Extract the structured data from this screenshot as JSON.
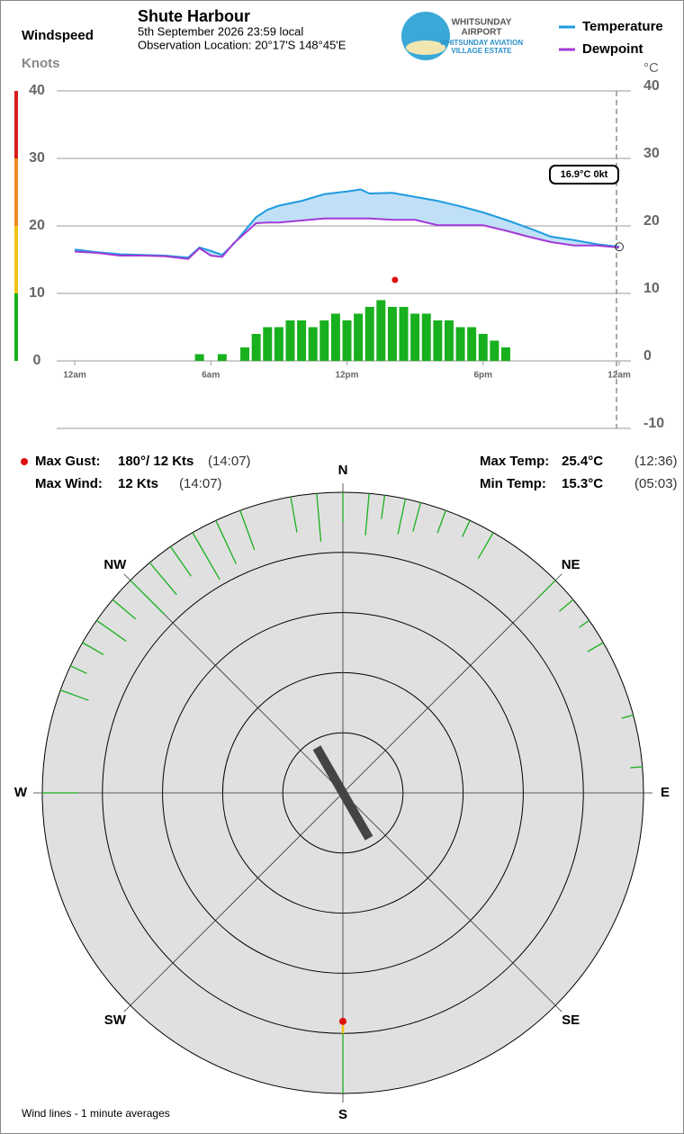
{
  "header": {
    "title": "Shute Harbour",
    "date": "5th September 2026  23:59 local",
    "location": "Observation Location:  20°17'S 148°45'E",
    "logo_line1": "WHITSUNDAY",
    "logo_line2": "AIRPORT",
    "logo_line3": "WHITSUNDAY AVIATION",
    "logo_line4": "VILLAGE ESTATE"
  },
  "stats": {
    "max_gust_label": "Max Gust:",
    "max_gust": "180°/  12 Kts",
    "max_gust_time": "(14:07)",
    "max_wind_label": "Max Wind:",
    "max_wind": "12 Kts",
    "max_wind_time": "(14:07)",
    "max_temp_label": "Max Temp:",
    "max_temp": "25.4°C",
    "max_temp_time": "(12:36)",
    "min_temp_label": "Min Temp:",
    "min_temp": "15.3°C",
    "min_temp_time": "(05:03)"
  },
  "footer": "Wind lines - 1 minute averages",
  "chart_data": [
    {
      "type": "line",
      "ylabel": "Windspeed",
      "yunit": "Knots",
      "y2unit": "°C",
      "xlim": [
        0,
        24
      ],
      "xticks": [
        {
          "value": 0,
          "label": "12am"
        },
        {
          "value": 6,
          "label": "6am"
        },
        {
          "value": 12,
          "label": "12pm"
        },
        {
          "value": 18,
          "label": "6pm"
        },
        {
          "value": 24,
          "label": "12am"
        }
      ],
      "ylim": [
        0,
        40
      ],
      "yticks": [
        0,
        10,
        20,
        30,
        40
      ],
      "y2lim": [
        -10,
        40
      ],
      "y2ticks": [
        -10,
        0,
        10,
        20,
        30,
        40
      ],
      "grid": true,
      "legend": "top-right",
      "x": [
        0,
        1,
        2,
        3,
        4,
        5,
        5.5,
        6,
        6.5,
        7,
        8,
        8.5,
        9,
        10,
        11,
        12,
        12.6,
        13,
        14,
        15,
        16,
        17,
        18,
        19,
        20,
        21,
        22,
        23,
        24
      ],
      "series": [
        {
          "name": "Temperature",
          "color": "#1e9be0",
          "axis": "y2",
          "values": [
            16.5,
            16.1,
            15.8,
            15.7,
            15.6,
            15.3,
            16.8,
            16.3,
            15.7,
            17.3,
            21.3,
            22.4,
            23.0,
            23.7,
            24.7,
            25.1,
            25.4,
            24.8,
            24.9,
            24.3,
            23.7,
            22.9,
            22.0,
            20.9,
            19.7,
            18.4,
            17.9,
            17.3,
            16.9
          ]
        },
        {
          "name": "Dewpoint",
          "color": "#a33ad6",
          "axis": "y2",
          "values": [
            16.2,
            16.0,
            15.6,
            15.6,
            15.5,
            15.1,
            16.7,
            15.6,
            15.4,
            17.4,
            20.4,
            20.5,
            20.5,
            20.8,
            21.1,
            21.1,
            21.1,
            21.1,
            20.9,
            20.9,
            20.1,
            20.1,
            20.1,
            19.3,
            18.4,
            17.6,
            17.1,
            17.1,
            16.8
          ]
        }
      ],
      "bars": {
        "color": "#19b01e",
        "x": [
          0,
          0.5,
          1,
          1.5,
          2,
          2.5,
          3,
          3.5,
          4,
          4.5,
          5,
          5.5,
          6,
          6.5,
          7,
          7.5,
          8,
          8.5,
          9,
          9.5,
          10,
          10.5,
          11,
          11.5,
          12,
          12.5,
          13,
          13.5,
          14,
          14.5,
          15,
          15.5,
          16,
          16.5,
          17,
          17.5,
          18,
          18.5,
          19,
          19.5,
          20,
          20.5,
          21,
          21.5,
          22,
          22.5,
          23,
          23.5
        ],
        "values": [
          0,
          0,
          0,
          0,
          0,
          0,
          0,
          0,
          0,
          0,
          0,
          1,
          0,
          1,
          0,
          2,
          4,
          5,
          5,
          6,
          6,
          5,
          6,
          7,
          6,
          7,
          8,
          9,
          8,
          8,
          7,
          7,
          6,
          6,
          5,
          5,
          4,
          3,
          2,
          0,
          0,
          0,
          0,
          0,
          0,
          0,
          0,
          0
        ]
      },
      "gust": {
        "x": 14.117,
        "value": 12,
        "color": "#e01010"
      },
      "current": {
        "x": 24,
        "value": 16.9,
        "label": "16.9°C  0kt"
      }
    },
    {
      "type": "polar",
      "rlim": [
        0,
        50
      ],
      "rticks": [
        10,
        20,
        30,
        40,
        50
      ],
      "thetaticks": [
        {
          "value": 0,
          "label": "N"
        },
        {
          "value": 45,
          "label": "NE"
        },
        {
          "value": 90,
          "label": "E"
        },
        {
          "value": 135,
          "label": "SE"
        },
        {
          "value": 180,
          "label": "S"
        },
        {
          "value": 225,
          "label": "SW"
        },
        {
          "value": 270,
          "label": "W"
        },
        {
          "value": 315,
          "label": "NW"
        }
      ],
      "color": "#19b01e",
      "directions": [
        350,
        355,
        0,
        5,
        8,
        12,
        15,
        20,
        25,
        30,
        340,
        335,
        330,
        325,
        320,
        315,
        310,
        305,
        300,
        295,
        290,
        45,
        50,
        55,
        60,
        75,
        85,
        270,
        180
      ],
      "values": [
        6,
        8,
        5,
        7,
        4,
        6,
        5,
        4,
        3,
        5,
        7,
        8,
        9,
        6,
        7,
        8,
        5,
        6,
        4,
        3,
        5,
        4,
        3,
        2,
        3,
        2,
        2,
        6,
        10
      ],
      "gust": {
        "direction": 180,
        "value": 12,
        "color": "#e01010"
      }
    }
  ]
}
